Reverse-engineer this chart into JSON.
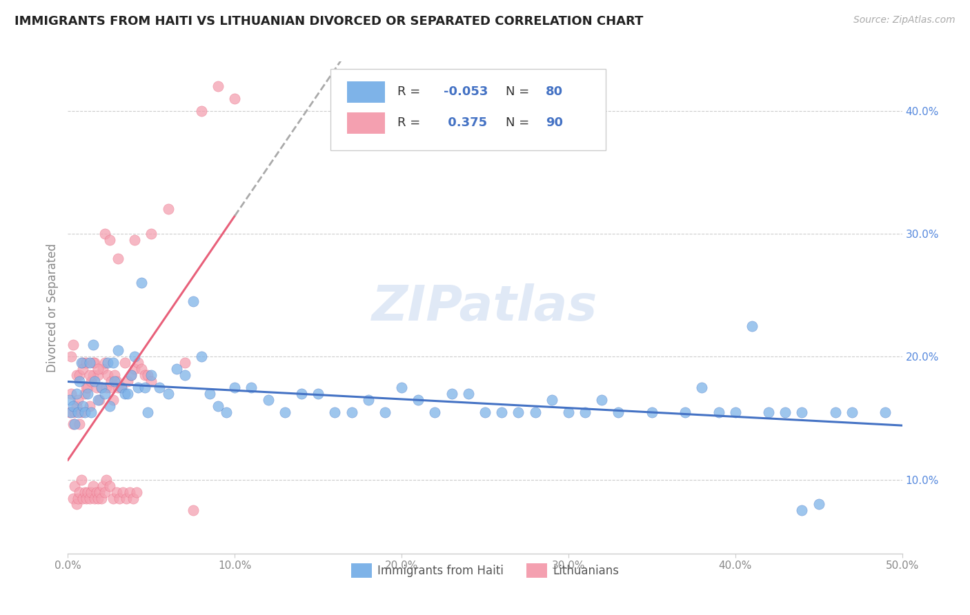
{
  "title": "IMMIGRANTS FROM HAITI VS LITHUANIAN DIVORCED OR SEPARATED CORRELATION CHART",
  "source": "Source: ZipAtlas.com",
  "ylabel": "Divorced or Separated",
  "xmin": 0.0,
  "xmax": 0.5,
  "ymin": 0.04,
  "ymax": 0.44,
  "xtick_labels": [
    "0.0%",
    "10.0%",
    "20.0%",
    "30.0%",
    "40.0%",
    "50.0%"
  ],
  "xtick_vals": [
    0.0,
    0.1,
    0.2,
    0.3,
    0.4,
    0.5
  ],
  "ytick_vals": [
    0.1,
    0.2,
    0.3,
    0.4
  ],
  "ytick_labels": [
    "10.0%",
    "20.0%",
    "30.0%",
    "40.0%"
  ],
  "haiti_color": "#7EB3E8",
  "lithuanian_color": "#F4A0B0",
  "haiti_line_color": "#4472C4",
  "lithuanian_line_color": "#E8607A",
  "right_tick_color": "#5588DD",
  "legend_haiti_R": "-0.053",
  "legend_haiti_N": "80",
  "legend_lith_R": "0.375",
  "legend_lith_N": "90",
  "watermark": "ZIPatlas",
  "haiti_line_start_y": 0.167,
  "haiti_line_end_y": 0.163,
  "lith_line_start_y": 0.118,
  "lith_line_end_y": 0.265,
  "lith_line_solid_end_x": 0.5,
  "lith_line_dashed_end_x": 0.5,
  "haiti_x": [
    0.001,
    0.002,
    0.003,
    0.004,
    0.005,
    0.006,
    0.007,
    0.008,
    0.009,
    0.01,
    0.012,
    0.013,
    0.014,
    0.015,
    0.016,
    0.018,
    0.02,
    0.022,
    0.024,
    0.025,
    0.027,
    0.028,
    0.03,
    0.032,
    0.034,
    0.036,
    0.038,
    0.04,
    0.042,
    0.044,
    0.046,
    0.048,
    0.05,
    0.055,
    0.06,
    0.065,
    0.07,
    0.075,
    0.08,
    0.085,
    0.09,
    0.095,
    0.1,
    0.11,
    0.12,
    0.13,
    0.14,
    0.15,
    0.16,
    0.17,
    0.18,
    0.19,
    0.2,
    0.21,
    0.22,
    0.23,
    0.24,
    0.25,
    0.26,
    0.27,
    0.28,
    0.29,
    0.3,
    0.31,
    0.32,
    0.33,
    0.35,
    0.37,
    0.38,
    0.39,
    0.4,
    0.41,
    0.42,
    0.43,
    0.44,
    0.45,
    0.46,
    0.47,
    0.49,
    0.44
  ],
  "haiti_y": [
    0.165,
    0.155,
    0.16,
    0.145,
    0.17,
    0.155,
    0.18,
    0.195,
    0.16,
    0.155,
    0.17,
    0.195,
    0.155,
    0.21,
    0.18,
    0.165,
    0.175,
    0.17,
    0.195,
    0.16,
    0.195,
    0.18,
    0.205,
    0.175,
    0.17,
    0.17,
    0.185,
    0.2,
    0.175,
    0.26,
    0.175,
    0.155,
    0.185,
    0.175,
    0.17,
    0.19,
    0.185,
    0.245,
    0.2,
    0.17,
    0.16,
    0.155,
    0.175,
    0.175,
    0.165,
    0.155,
    0.17,
    0.17,
    0.155,
    0.155,
    0.165,
    0.155,
    0.175,
    0.165,
    0.155,
    0.17,
    0.17,
    0.155,
    0.155,
    0.155,
    0.155,
    0.165,
    0.155,
    0.155,
    0.165,
    0.155,
    0.155,
    0.155,
    0.175,
    0.155,
    0.155,
    0.225,
    0.155,
    0.155,
    0.155,
    0.08,
    0.155,
    0.155,
    0.155,
    0.075
  ],
  "lith_x": [
    0.001,
    0.002,
    0.003,
    0.004,
    0.005,
    0.006,
    0.007,
    0.008,
    0.009,
    0.01,
    0.011,
    0.012,
    0.013,
    0.014,
    0.015,
    0.016,
    0.017,
    0.018,
    0.019,
    0.02,
    0.021,
    0.022,
    0.023,
    0.024,
    0.025,
    0.026,
    0.027,
    0.028,
    0.029,
    0.03,
    0.032,
    0.034,
    0.036,
    0.038,
    0.04,
    0.042,
    0.044,
    0.046,
    0.048,
    0.05,
    0.003,
    0.004,
    0.005,
    0.006,
    0.007,
    0.008,
    0.009,
    0.01,
    0.011,
    0.012,
    0.013,
    0.014,
    0.015,
    0.016,
    0.017,
    0.018,
    0.019,
    0.02,
    0.021,
    0.022,
    0.023,
    0.025,
    0.027,
    0.029,
    0.031,
    0.033,
    0.035,
    0.037,
    0.039,
    0.041,
    0.002,
    0.003,
    0.005,
    0.007,
    0.009,
    0.011,
    0.013,
    0.015,
    0.018,
    0.022,
    0.025,
    0.03,
    0.04,
    0.05,
    0.06,
    0.07,
    0.08,
    0.09,
    0.1,
    0.075
  ],
  "lith_y": [
    0.155,
    0.17,
    0.145,
    0.155,
    0.16,
    0.165,
    0.145,
    0.155,
    0.195,
    0.17,
    0.175,
    0.175,
    0.16,
    0.18,
    0.185,
    0.195,
    0.175,
    0.185,
    0.165,
    0.175,
    0.19,
    0.195,
    0.175,
    0.185,
    0.175,
    0.18,
    0.165,
    0.185,
    0.18,
    0.175,
    0.175,
    0.195,
    0.18,
    0.185,
    0.19,
    0.195,
    0.19,
    0.185,
    0.185,
    0.18,
    0.085,
    0.095,
    0.08,
    0.085,
    0.09,
    0.1,
    0.085,
    0.09,
    0.085,
    0.09,
    0.085,
    0.09,
    0.095,
    0.085,
    0.09,
    0.085,
    0.09,
    0.085,
    0.095,
    0.09,
    0.1,
    0.095,
    0.085,
    0.09,
    0.085,
    0.09,
    0.085,
    0.09,
    0.085,
    0.09,
    0.2,
    0.21,
    0.185,
    0.185,
    0.19,
    0.195,
    0.185,
    0.195,
    0.19,
    0.3,
    0.295,
    0.28,
    0.295,
    0.3,
    0.32,
    0.195,
    0.4,
    0.42,
    0.41,
    0.075
  ]
}
